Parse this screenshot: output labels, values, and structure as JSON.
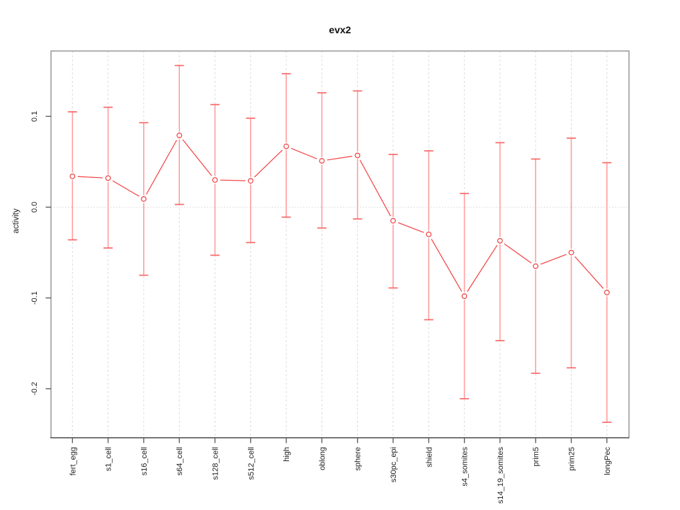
{
  "figure": {
    "background": "#ffffff"
  },
  "chart_data": {
    "type": "line",
    "title": "evx2",
    "xlabel": "",
    "ylabel": "activity",
    "legend_position": "none",
    "categories": [
      "fert_egg",
      "s1_cell",
      "s16_cell",
      "s64_cell",
      "s128_cell",
      "s512_cell",
      "high",
      "oblong",
      "sphere",
      "s30pc_epi",
      "shield",
      "s4_somites",
      "s14_19_somites",
      "prim5",
      "prim25",
      "longPec"
    ],
    "series": [
      {
        "name": "activity",
        "values": [
          0.034,
          0.032,
          0.009,
          0.079,
          0.03,
          0.029,
          0.067,
          0.051,
          0.057,
          -0.015,
          -0.03,
          -0.098,
          -0.037,
          -0.065,
          -0.05,
          -0.094
        ],
        "upper": [
          0.105,
          0.11,
          0.093,
          0.156,
          0.113,
          0.098,
          0.147,
          0.126,
          0.128,
          0.058,
          0.062,
          0.015,
          0.071,
          0.053,
          0.076,
          0.049
        ],
        "lower": [
          -0.036,
          -0.045,
          -0.075,
          0.003,
          -0.053,
          -0.039,
          -0.011,
          -0.023,
          -0.013,
          -0.089,
          -0.124,
          -0.211,
          -0.147,
          -0.183,
          -0.177,
          -0.237
        ]
      }
    ],
    "yticks": [
      "0.1",
      "0.0",
      "-0.1",
      "-0.2"
    ],
    "ytick_values": [
      0.1,
      0.0,
      -0.1,
      -0.2
    ],
    "ylim": [
      -0.254,
      0.172
    ],
    "grid": {
      "vertical_dashed_per_category": true,
      "horizontal_dotted_at_zero": true
    },
    "colors": {
      "point_line": "#f34141",
      "error_bar": "#ff9e9e",
      "error_cap": "#f96a6a",
      "box": "#989898",
      "axis_bottom": "#444444",
      "tick": "#555555",
      "grid_line": "#dcdcdc",
      "zero_line": "#d8d8d8",
      "text": "#1f1f1f"
    }
  }
}
